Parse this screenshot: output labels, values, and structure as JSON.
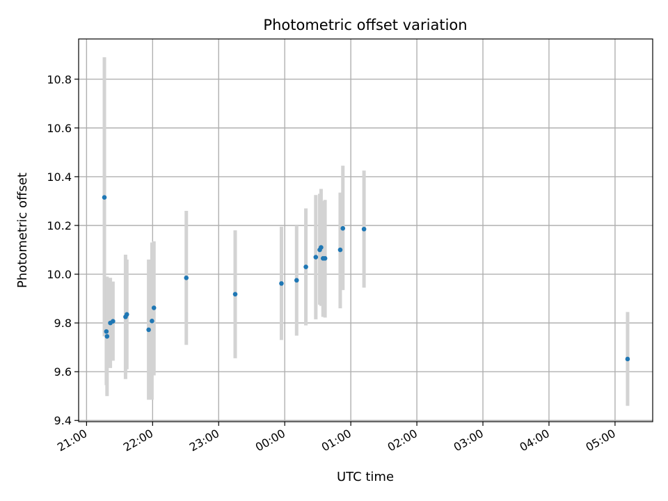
{
  "chart_data": {
    "type": "scatter",
    "title": "Photometric offset variation",
    "xlabel": "UTC time",
    "ylabel": "Photometric offset",
    "x_unit": "hours since 21:00 UTC",
    "xlim": [
      -0.12,
      8.57
    ],
    "ylim": [
      9.395,
      10.965
    ],
    "x_ticks": [
      {
        "v": 0,
        "label": "21:00"
      },
      {
        "v": 1,
        "label": "22:00"
      },
      {
        "v": 2,
        "label": "23:00"
      },
      {
        "v": 3,
        "label": "00:00"
      },
      {
        "v": 4,
        "label": "01:00"
      },
      {
        "v": 5,
        "label": "02:00"
      },
      {
        "v": 6,
        "label": "03:00"
      },
      {
        "v": 7,
        "label": "04:00"
      },
      {
        "v": 8,
        "label": "05:00"
      }
    ],
    "y_ticks": [
      {
        "v": 9.4,
        "label": "9.4"
      },
      {
        "v": 9.6,
        "label": "9.6"
      },
      {
        "v": 9.8,
        "label": "9.8"
      },
      {
        "v": 10.0,
        "label": "10.0"
      },
      {
        "v": 10.2,
        "label": "10.2"
      },
      {
        "v": 10.4,
        "label": "10.4"
      },
      {
        "v": 10.6,
        "label": "10.6"
      },
      {
        "v": 10.8,
        "label": "10.8"
      }
    ],
    "grid": true,
    "colors": {
      "marker": "#1f77b4",
      "errorbar": "#d3d3d3",
      "grid": "#b0b0b0"
    },
    "series": [
      {
        "points": [
          {
            "x": 0.27,
            "y": 10.315,
            "lo": 9.745,
            "hi": 10.89
          },
          {
            "x": 0.3,
            "y": 9.765,
            "lo": 9.545,
            "hi": 9.985
          },
          {
            "x": 0.31,
            "y": 9.745,
            "lo": 9.5,
            "hi": 9.99
          },
          {
            "x": 0.36,
            "y": 9.8,
            "lo": 9.615,
            "hi": 9.985
          },
          {
            "x": 0.4,
            "y": 9.807,
            "lo": 9.645,
            "hi": 9.97
          },
          {
            "x": 0.59,
            "y": 9.825,
            "lo": 9.57,
            "hi": 10.08
          },
          {
            "x": 0.61,
            "y": 9.835,
            "lo": 9.61,
            "hi": 10.06
          },
          {
            "x": 0.94,
            "y": 9.772,
            "lo": 9.485,
            "hi": 10.06
          },
          {
            "x": 0.99,
            "y": 9.808,
            "lo": 9.485,
            "hi": 10.13
          },
          {
            "x": 1.02,
            "y": 9.862,
            "lo": 9.585,
            "hi": 10.135
          },
          {
            "x": 1.51,
            "y": 9.985,
            "lo": 9.71,
            "hi": 10.26
          },
          {
            "x": 2.25,
            "y": 9.918,
            "lo": 9.655,
            "hi": 10.18
          },
          {
            "x": 2.95,
            "y": 9.962,
            "lo": 9.73,
            "hi": 10.195
          },
          {
            "x": 3.18,
            "y": 9.975,
            "lo": 9.748,
            "hi": 10.2
          },
          {
            "x": 3.32,
            "y": 10.03,
            "lo": 9.79,
            "hi": 10.27
          },
          {
            "x": 3.47,
            "y": 10.07,
            "lo": 9.815,
            "hi": 10.325
          },
          {
            "x": 3.53,
            "y": 10.1,
            "lo": 9.875,
            "hi": 10.33
          },
          {
            "x": 3.55,
            "y": 10.11,
            "lo": 9.87,
            "hi": 10.35
          },
          {
            "x": 3.58,
            "y": 10.065,
            "lo": 9.825,
            "hi": 10.3
          },
          {
            "x": 3.61,
            "y": 10.065,
            "lo": 9.822,
            "hi": 10.305
          },
          {
            "x": 3.84,
            "y": 10.1,
            "lo": 9.86,
            "hi": 10.335
          },
          {
            "x": 3.88,
            "y": 10.188,
            "lo": 9.935,
            "hi": 10.445
          },
          {
            "x": 4.2,
            "y": 10.185,
            "lo": 9.945,
            "hi": 10.425
          },
          {
            "x": 8.19,
            "y": 9.652,
            "lo": 9.46,
            "hi": 9.845
          }
        ]
      }
    ]
  }
}
